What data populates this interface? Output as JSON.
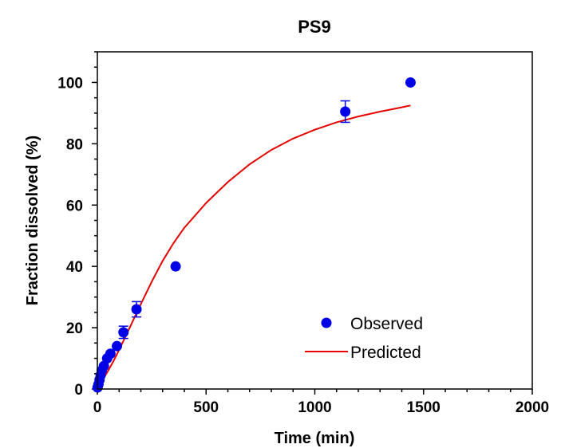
{
  "chart_data": {
    "type": "scatter",
    "title": "PS9",
    "xlabel": "Time (min)",
    "ylabel": "Fraction dissolved (%)",
    "xlim": [
      0,
      2000
    ],
    "ylim": [
      0,
      110
    ],
    "xticks": [
      0,
      500,
      1000,
      1500,
      2000
    ],
    "yticks": [
      0,
      20,
      40,
      60,
      80,
      100
    ],
    "x_tick_labels": [
      "0",
      "500",
      "1000",
      "1500",
      "2000"
    ],
    "y_tick_labels": [
      "0",
      "20",
      "40",
      "60",
      "80",
      "100"
    ],
    "grid": false,
    "legend_position": "bottom-right",
    "series": [
      {
        "name": "Observed",
        "kind": "scatter",
        "color": "#0000E6",
        "x": [
          1,
          5,
          10,
          15,
          20,
          30,
          45,
          60,
          90,
          120,
          180,
          360,
          1140,
          1440
        ],
        "y": [
          0.5,
          1.5,
          3,
          4.5,
          6,
          7.5,
          10,
          11.5,
          14,
          18.5,
          26,
          40,
          90.5,
          100
        ],
        "err": [
          0,
          0,
          0,
          0,
          0,
          0,
          0,
          0,
          0,
          2,
          2.5,
          0,
          3.5,
          0
        ]
      },
      {
        "name": "Predicted",
        "kind": "line",
        "color": "#E60000",
        "x": [
          0,
          10,
          25,
          50,
          75,
          100,
          125,
          150,
          175,
          200,
          250,
          300,
          350,
          400,
          500,
          600,
          700,
          800,
          900,
          1000,
          1100,
          1200,
          1300,
          1400,
          1440
        ],
        "y": [
          0,
          1.2,
          3.0,
          6.0,
          9.2,
          12.8,
          16.5,
          20.2,
          24.0,
          27.7,
          35.0,
          41.8,
          47.6,
          52.6,
          60.7,
          67.5,
          73.3,
          78.0,
          81.7,
          84.6,
          87.0,
          88.9,
          90.5,
          91.9,
          92.5
        ]
      }
    ]
  }
}
